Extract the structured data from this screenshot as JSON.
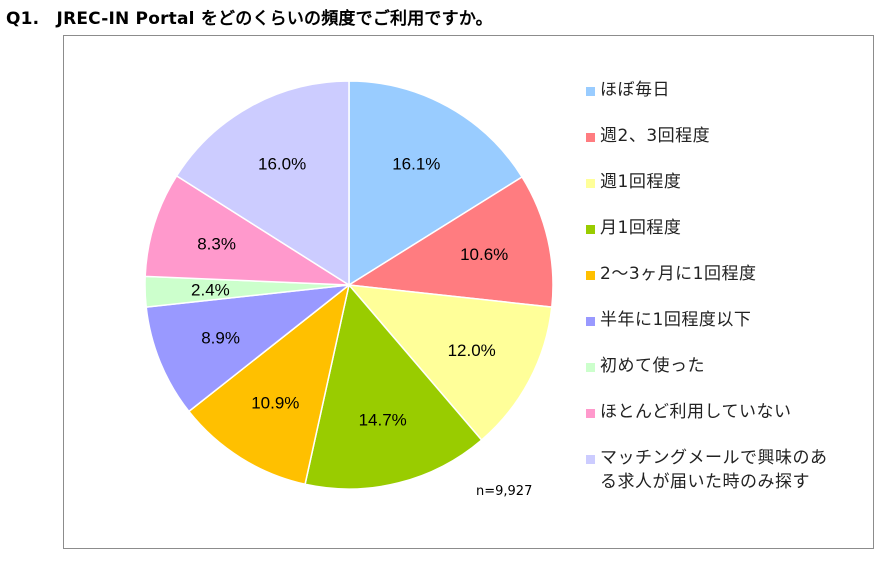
{
  "title": "Q1.　JREC-IN Portal をどのくらいの頻度でご利用ですか。",
  "chart_data": {
    "type": "pie",
    "title": "Q1.　JREC-IN Portal をどのくらいの頻度でご利用ですか。",
    "sample_size": "n=9,927",
    "legend_position": "right",
    "slices": [
      {
        "label": "ほぼ毎日",
        "value": 16.1,
        "value_label": "16.1%",
        "color": "#99ccff"
      },
      {
        "label": "週2、3回程度",
        "value": 10.6,
        "value_label": "10.6%",
        "color": "#ff7c80"
      },
      {
        "label": "週1回程度",
        "value": 12.0,
        "value_label": "12.0%",
        "color": "#ffff99"
      },
      {
        "label": "月1回程度",
        "value": 14.7,
        "value_label": "14.7%",
        "color": "#99cc00"
      },
      {
        "label": "2～3ヶ月に1回程度",
        "value": 10.9,
        "value_label": "10.9%",
        "color": "#ffc000"
      },
      {
        "label": "半年に1回程度以下",
        "value": 8.9,
        "value_label": "8.9%",
        "color": "#9999ff"
      },
      {
        "label": "初めて使った",
        "value": 2.4,
        "value_label": "2.4%",
        "color": "#ccffcc"
      },
      {
        "label": "ほとんど利用していない",
        "value": 8.3,
        "value_label": "8.3%",
        "color": "#ff99cc"
      },
      {
        "label": "マッチングメールで興味のある求人が届いた時のみ探す",
        "display_label": "マッチングメールで興味のあ\nる求人が届いた時のみ探す",
        "value": 16.0,
        "value_label": "16.0%",
        "color": "#ccccff"
      }
    ]
  }
}
